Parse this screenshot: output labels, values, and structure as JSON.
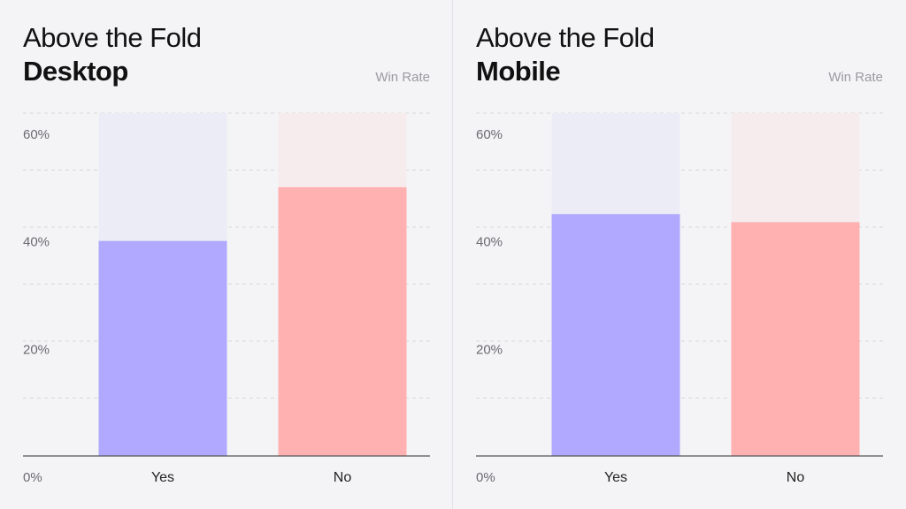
{
  "colors": {
    "yes": "#b0a9ff",
    "yes_track": "#ececf6",
    "no": "#ffb0b0",
    "no_track": "#f6ecee",
    "grid": "#d8d8dc",
    "axis": "#555555",
    "tick_text": "#6b6b70"
  },
  "chart_data": [
    {
      "type": "bar",
      "title": "Above the Fold",
      "subtitle": "Desktop",
      "metric_label": "Win Rate",
      "categories": [
        "Yes",
        "No"
      ],
      "values": [
        40,
        50
      ],
      "ylim": [
        0,
        60
      ],
      "yticks": [
        0,
        20,
        40,
        60
      ],
      "ytick_labels": [
        "0%",
        "20%",
        "40%",
        "60%"
      ],
      "grid": true
    },
    {
      "type": "bar",
      "title": "Above the Fold",
      "subtitle": "Mobile",
      "metric_label": "Win Rate",
      "categories": [
        "Yes",
        "No"
      ],
      "values": [
        45,
        43.5
      ],
      "ylim": [
        0,
        60
      ],
      "yticks": [
        0,
        20,
        40,
        60
      ],
      "ytick_labels": [
        "0%",
        "20%",
        "40%",
        "60%"
      ],
      "grid": true
    }
  ]
}
